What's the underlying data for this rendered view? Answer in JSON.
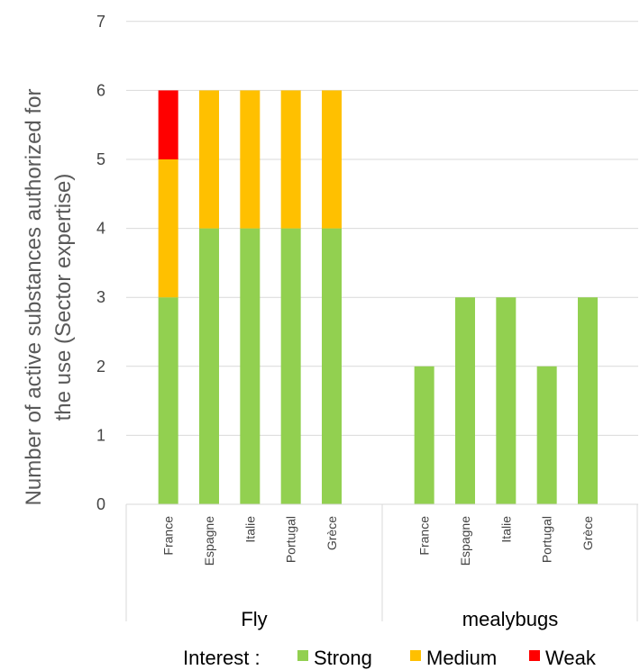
{
  "chart_data": {
    "type": "bar",
    "stacked": true,
    "ylabel_lines": [
      "Number of active substances authorized for",
      "the use (Sector expertise)"
    ],
    "ylim": [
      0,
      7
    ],
    "yticks": [
      0,
      1,
      2,
      3,
      4,
      5,
      6,
      7
    ],
    "grid": true,
    "groups": [
      {
        "name": "Fly",
        "categories": [
          "France",
          "Espagne",
          "Italie",
          "Portugal",
          "Grèce"
        ]
      },
      {
        "name": "mealybugs",
        "categories": [
          "France",
          "Espagne",
          "Italie",
          "Portugal",
          "Grèce"
        ]
      }
    ],
    "series": [
      {
        "name": "Strong",
        "color": "#92D050",
        "values": [
          3,
          4,
          4,
          4,
          4,
          2,
          3,
          3,
          2,
          3
        ]
      },
      {
        "name": "Medium",
        "color": "#FFC000",
        "values": [
          2,
          2,
          2,
          2,
          2,
          0,
          0,
          0,
          0,
          0
        ]
      },
      {
        "name": "Weak",
        "color": "#FF0000",
        "values": [
          1,
          0,
          0,
          0,
          0,
          0,
          0,
          0,
          0,
          0
        ]
      }
    ],
    "legend": {
      "prefix": "Interest :",
      "position": "bottom"
    }
  }
}
